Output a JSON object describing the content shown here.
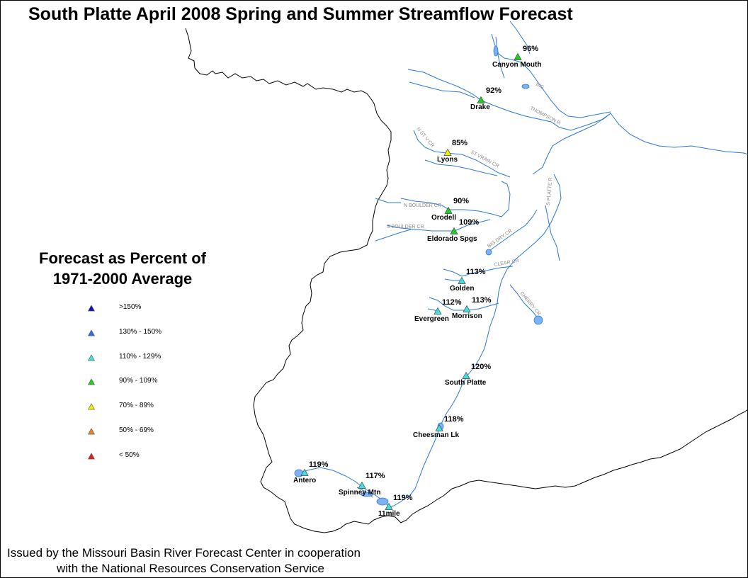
{
  "title": "South Platte April 2008 Spring and Summer Streamflow Forecast",
  "legend": {
    "title_line1": "Forecast as Percent of",
    "title_line2": "1971-2000 Average",
    "items": [
      {
        "label": ">150%",
        "color": "#1010c0"
      },
      {
        "label": "130% - 150%",
        "color": "#2e6fe8"
      },
      {
        "label": "110% - 129%",
        "color": "#40e0e0"
      },
      {
        "label": "90% - 109%",
        "color": "#20d020"
      },
      {
        "label": "70% - 89%",
        "color": "#f0f000"
      },
      {
        "label": "50% - 69%",
        "color": "#f08020"
      },
      {
        "label": "< 50%",
        "color": "#e02020"
      }
    ]
  },
  "stations": [
    {
      "name": "Canyon Mouth",
      "pct": "96%",
      "color": "#20d020"
    },
    {
      "name": "Drake",
      "pct": "92%",
      "color": "#20d020"
    },
    {
      "name": "Lyons",
      "pct": "85%",
      "color": "#f0f000"
    },
    {
      "name": "Orodell",
      "pct": "90%",
      "color": "#20d020"
    },
    {
      "name": "Eldorado Spgs",
      "pct": "109%",
      "color": "#20d020"
    },
    {
      "name": "Golden",
      "pct": "113%",
      "color": "#40e0e0"
    },
    {
      "name": "Evergreen",
      "pct": "112%",
      "color": "#40e0e0"
    },
    {
      "name": "Morrison",
      "pct": "113%",
      "color": "#40e0e0"
    },
    {
      "name": "South Platte",
      "pct": "120%",
      "color": "#40e0e0"
    },
    {
      "name": "Cheesman Lk",
      "pct": "118%",
      "color": "#40e0e0"
    },
    {
      "name": "Antero",
      "pct": "119%",
      "color": "#40e0e0"
    },
    {
      "name": "Spinney Mtn",
      "pct": "117%",
      "color": "#40e0e0"
    },
    {
      "name": "11mile",
      "pct": "119%",
      "color": "#40e0e0"
    }
  ],
  "river_labels": {
    "thompson": "THOMPSON R",
    "st_vrain": "ST VRAIN CR",
    "n_st_vrain": "N ST V CR",
    "s_platte": "S PLATTE R",
    "n_boulder": "N BOULDER CR",
    "s_boulder": "S BOULDER CR",
    "big_dry": "BIG DRY CR",
    "clear": "CLEAR CR",
    "cherry": "CHERRY CR",
    "big_thompson_short": "BIG"
  },
  "footer": {
    "line1": "Issued by the Missouri Basin River Forecast Center in cooperation",
    "line2": "with the National Resources Conservation Service"
  }
}
